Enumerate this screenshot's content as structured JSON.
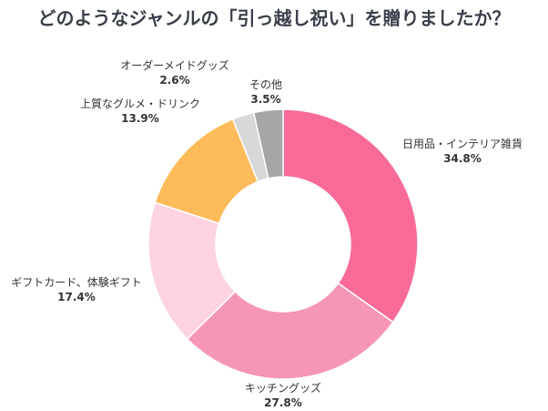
{
  "chart_data": {
    "type": "pie",
    "variant": "donut",
    "title": "どのようなジャンルの「引っ越し祝い」を贈りましたか？",
    "slices": [
      {
        "label": "日用品・インテリア雑貨",
        "value": 34.8,
        "value_text": "34.8%",
        "color": "#f86b97"
      },
      {
        "label": "キッチングッズ",
        "value": 27.8,
        "value_text": "27.8%",
        "color": "#f596b5"
      },
      {
        "label": "ギフトカード、体験ギフト",
        "value": 17.4,
        "value_text": "17.4%",
        "color": "#fdd3e1"
      },
      {
        "label": "上質なグルメ・ドリンク",
        "value": 13.9,
        "value_text": "13.9%",
        "color": "#fdbb59"
      },
      {
        "label": "オーダーメイドグッズ",
        "value": 2.6,
        "value_text": "2.6%",
        "color": "#d8d8d8"
      },
      {
        "label": "その他",
        "value": 3.5,
        "value_text": "3.5%",
        "color": "#a6a6a6"
      }
    ],
    "start_angle": "top",
    "direction": "clockwise"
  }
}
